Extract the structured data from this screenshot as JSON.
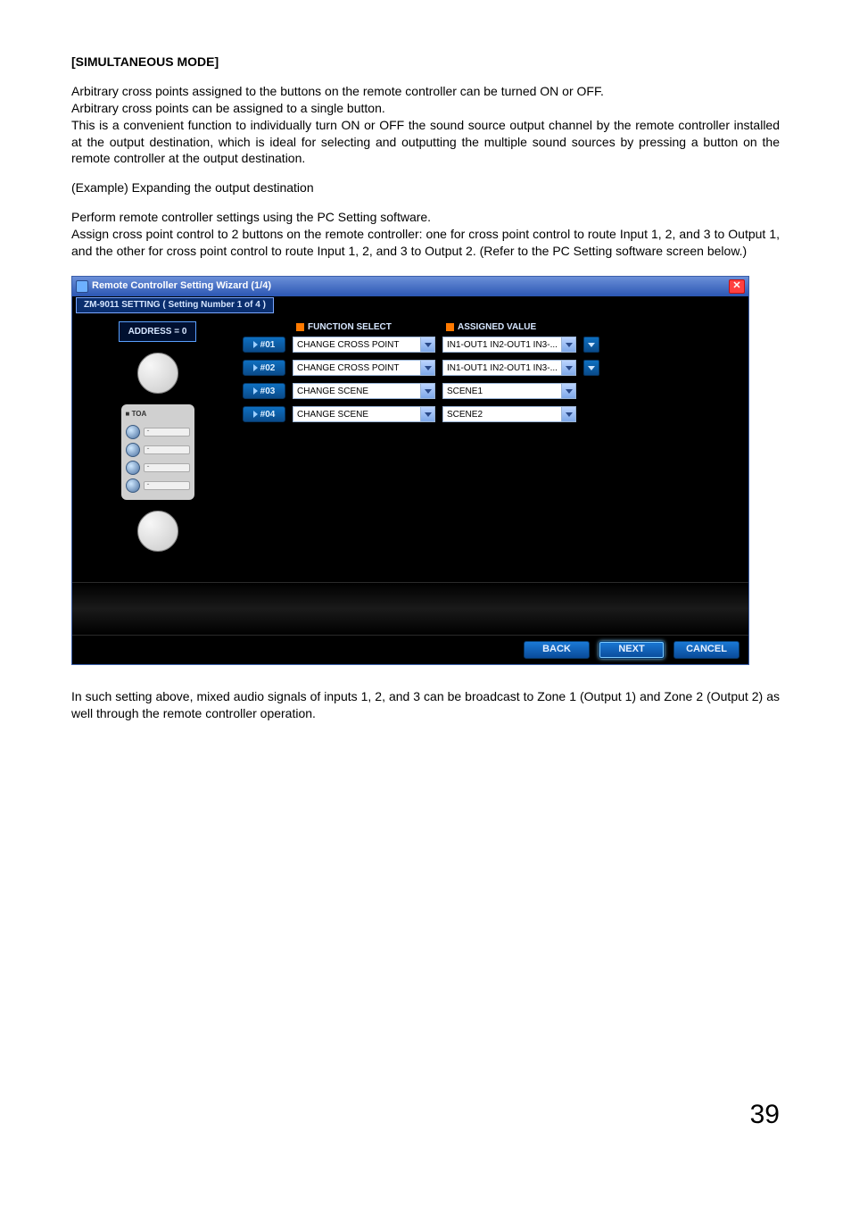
{
  "heading": "[SIMULTANEOUS MODE]",
  "para1a": "Arbitrary cross points assigned to the buttons on the remote controller can be turned ON or OFF.",
  "para1b": "Arbitrary cross points can be assigned to a single button.",
  "para1c": "This is a convenient function to individually turn ON or OFF the sound source output channel by the remote controller installed at the output destination, which is ideal for selecting and outputting the multiple sound sources by pressing a button on the remote controller at the output destination.",
  "para2": "(Example) Expanding the output destination",
  "para3a": "Perform remote controller settings using the PC Setting software.",
  "para3b": "Assign cross point control to 2 buttons on the remote controller: one for cross point control to route Input 1, 2, and 3 to Output 1, and the other for cross point control to route Input 1, 2, and 3 to Output 2. (Refer to the PC Setting software screen below.)",
  "para4": "In such setting above, mixed audio signals of inputs 1, 2, and 3 can be broadcast to Zone 1 (Output 1) and Zone 2 (Output 2) as well through the remote controller operation.",
  "page_number": "39",
  "wizard": {
    "title": "Remote Controller Setting Wizard (1/4)",
    "tab": "ZM-9011 SETTING  ( Setting Number 1 of 4 )",
    "address_label": "ADDRESS = 0",
    "remote_brand": "TOA",
    "col_function": "FUNCTION SELECT",
    "col_assigned": "ASSIGNED VALUE",
    "rows": [
      {
        "id": "#01",
        "function": "CHANGE CROSS POINT",
        "value": "IN1-OUT1 IN2-OUT1 IN3-...",
        "has_value_picker": true
      },
      {
        "id": "#02",
        "function": "CHANGE CROSS POINT",
        "value": "IN1-OUT1 IN2-OUT1 IN3-...",
        "has_value_picker": true
      },
      {
        "id": "#03",
        "function": "CHANGE SCENE",
        "value": "SCENE1",
        "has_value_picker": false
      },
      {
        "id": "#04",
        "function": "CHANGE SCENE",
        "value": "SCENE2",
        "has_value_picker": false
      }
    ],
    "buttons": {
      "back": "BACK",
      "next": "NEXT",
      "cancel": "CANCEL"
    },
    "colors": {
      "titlebar_start": "#6a8fd8",
      "titlebar_end": "#2b56b3",
      "close_bg": "#ff4040",
      "accent_orange": "#ff7a00",
      "chip_bg_start": "#0e6fc0",
      "chip_bg_end": "#0a4b8a",
      "body_bg": "#000000",
      "text_light": "#d6e6ff",
      "combo_bg": "#ffffff",
      "combo_border": "#9ab4d6"
    }
  }
}
